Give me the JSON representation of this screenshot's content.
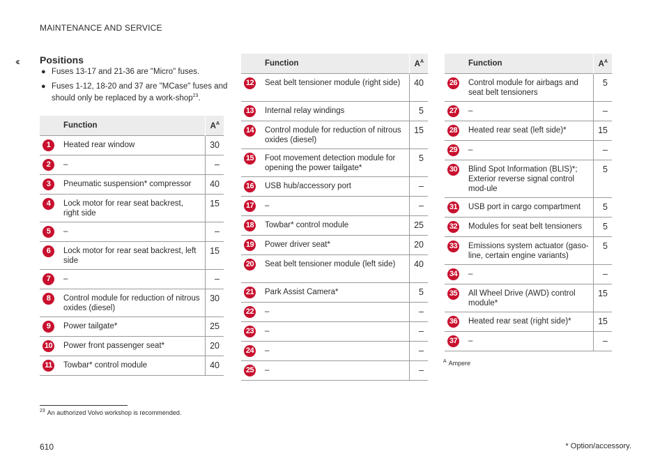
{
  "header": "MAINTENANCE AND SERVICE",
  "back_icon": "‹‹",
  "section_title": "Positions",
  "bullets": [
    "Fuses 13-17 and 21-36 are \"Micro\" fuses.",
    "Fuses 1-12, 18-20 and 37 are \"MCase\" fuses and should only be replaced by a work-shop"
  ],
  "bullet_footnote_ref": "23",
  "bullet_tail": ".",
  "table_header": {
    "function": "Function",
    "amp": "A",
    "amp_sup": "A"
  },
  "tables": [
    {
      "rows": [
        {
          "num": "1",
          "fn": "Heated rear window",
          "amp": "30"
        },
        {
          "num": "2",
          "fn": "–",
          "amp": "–"
        },
        {
          "num": "3",
          "fn": "Pneumatic suspension* compressor",
          "amp": "40"
        },
        {
          "num": "4",
          "fn": "Lock motor for rear seat backrest, right side",
          "amp": "15"
        },
        {
          "num": "5",
          "fn": "–",
          "amp": "–"
        },
        {
          "num": "6",
          "fn": "Lock motor for rear seat backrest, left side",
          "amp": "15"
        },
        {
          "num": "7",
          "fn": "–",
          "amp": "–"
        },
        {
          "num": "8",
          "fn": "Control module for reduction of nitrous oxides (diesel)",
          "amp": "30"
        },
        {
          "num": "9",
          "fn": "Power tailgate*",
          "amp": "25"
        },
        {
          "num": "10",
          "fn": "Power front passenger seat*",
          "amp": "20"
        },
        {
          "num": "11",
          "fn": "Towbar* control module",
          "amp": "40"
        }
      ]
    },
    {
      "rows": [
        {
          "num": "12",
          "fn": "Seat belt tensioner module (right side)",
          "amp": "40"
        },
        {
          "num": "13",
          "fn": "Internal relay windings",
          "amp": "5"
        },
        {
          "num": "14",
          "fn": "Control module for reduction of nitrous oxides (diesel)",
          "amp": "15"
        },
        {
          "num": "15",
          "fn": "Foot movement detection module for opening the power tailgate*",
          "amp": "5"
        },
        {
          "num": "16",
          "fn": "USB hub/accessory port",
          "amp": "–"
        },
        {
          "num": "17",
          "fn": "–",
          "amp": "–"
        },
        {
          "num": "18",
          "fn": "Towbar* control module",
          "amp": "25"
        },
        {
          "num": "19",
          "fn": "Power driver seat*",
          "amp": "20"
        },
        {
          "num": "20",
          "fn": "Seat belt tensioner module (left side)",
          "amp": "40"
        },
        {
          "num": "21",
          "fn": "Park Assist Camera*",
          "amp": "5"
        },
        {
          "num": "22",
          "fn": "–",
          "amp": "–"
        },
        {
          "num": "23",
          "fn": "–",
          "amp": "–"
        },
        {
          "num": "24",
          "fn": "–",
          "amp": "–"
        },
        {
          "num": "25",
          "fn": "–",
          "amp": "–"
        }
      ]
    },
    {
      "rows": [
        {
          "num": "26",
          "fn": "Control module for airbags and seat belt tensioners",
          "amp": "5"
        },
        {
          "num": "27",
          "fn": "–",
          "amp": "–"
        },
        {
          "num": "28",
          "fn": "Heated rear seat (left side)*",
          "amp": "15"
        },
        {
          "num": "29",
          "fn": "–",
          "amp": "–"
        },
        {
          "num": "30",
          "fn": "Blind Spot Information (BLIS)*; Exterior reverse signal control mod-ule",
          "amp": "5"
        },
        {
          "num": "31",
          "fn": "USB port in cargo compartment",
          "amp": "5"
        },
        {
          "num": "32",
          "fn": "Modules for seat belt tensioners",
          "amp": "5"
        },
        {
          "num": "33",
          "fn": "Emissions system actuator (gaso-line, certain engine variants)",
          "amp": "5"
        },
        {
          "num": "34",
          "fn": "–",
          "amp": "–"
        },
        {
          "num": "35",
          "fn": "All Wheel Drive (AWD) control module*",
          "amp": "15"
        },
        {
          "num": "36",
          "fn": "Heated rear seat (right side)*",
          "amp": "15"
        },
        {
          "num": "37",
          "fn": "–",
          "amp": "–"
        }
      ]
    }
  ],
  "amp_footnote": {
    "mark": "A",
    "text": "Ampere"
  },
  "footnote": {
    "mark": "23",
    "text": "An authorized Volvo workshop is recommended."
  },
  "page_number": "610",
  "option_note": "* Option/accessory.",
  "colors": {
    "badge": "#c8102e",
    "header_bg": "#ececec"
  }
}
